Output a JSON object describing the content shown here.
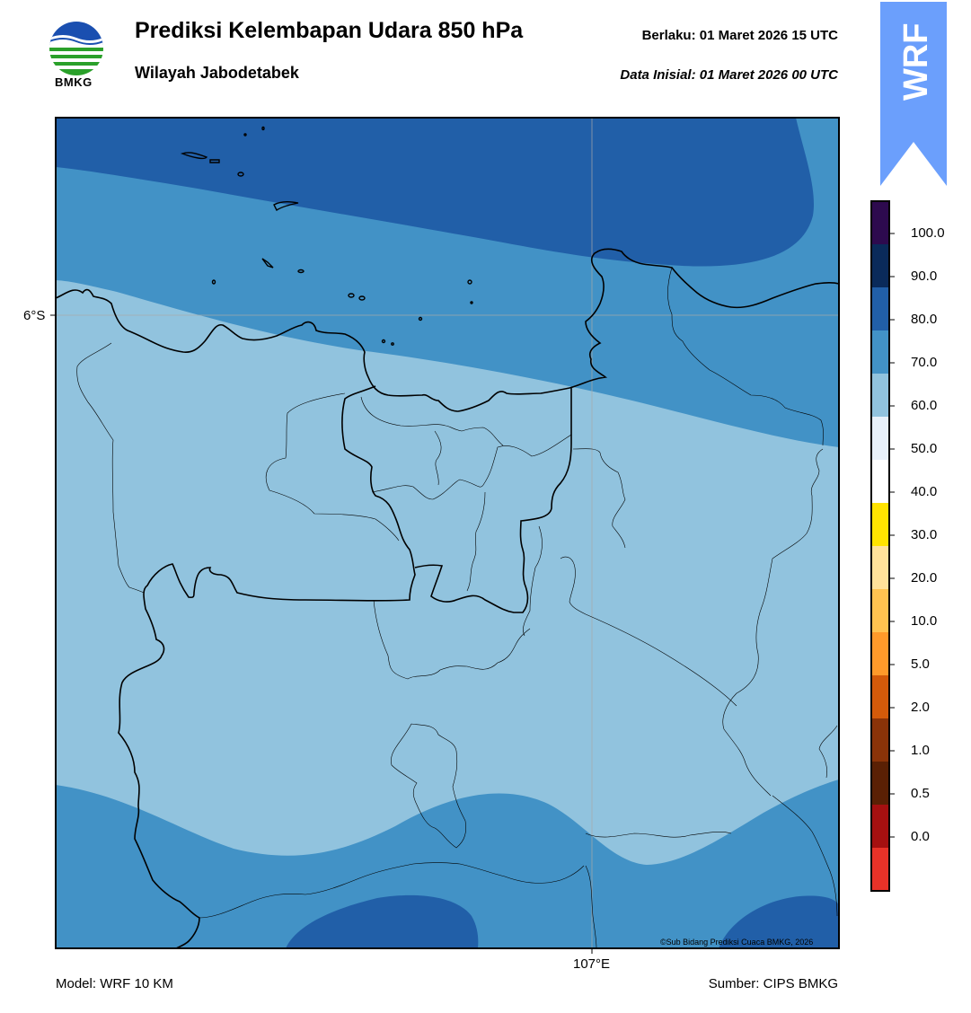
{
  "header": {
    "title": "Prediksi Kelembapan Udara 850 hPa",
    "subtitle": "Wilayah Jabodetabek",
    "valid_time": "Berlaku:  01 Maret 2026 15 UTC",
    "initial_time": "Data Inisial:  01 Maret 2026 00 UTC",
    "logo_text": "BMKG"
  },
  "model_badge": "WRF",
  "map": {
    "lat_label": "6°S",
    "lon_label": "107°E",
    "copyright": "©Sub Bidang Prediksi Cuaca BMKG, 2026"
  },
  "colorbar": {
    "labels": [
      "100.0",
      "90.0",
      "80.0",
      "70.0",
      "60.0",
      "50.0",
      "40.0",
      "30.0",
      "20.0",
      "10.0",
      "5.0",
      "2.0",
      "1.0",
      "0.5",
      "0.0"
    ],
    "colors": [
      "#2d0a4e",
      "#0a2a5a",
      "#215fa8",
      "#4292c6",
      "#91c3de",
      "#e8f1fa",
      "#ffffff",
      "#ffe300",
      "#ffe29a",
      "#ffc350",
      "#ff9a2a",
      "#d45a0a",
      "#8a3308",
      "#5a2004",
      "#a51010",
      "#e83228"
    ]
  },
  "footer": {
    "model": "Model: WRF 10 KM",
    "source": "Sumber: CIPS BMKG"
  }
}
